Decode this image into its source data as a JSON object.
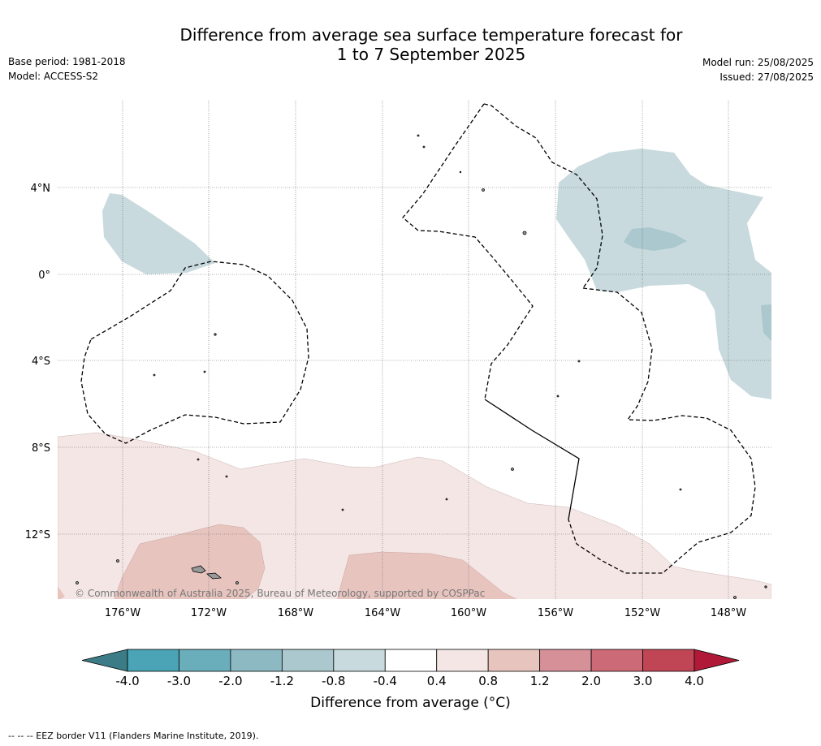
{
  "title_line1": "Difference from average sea surface temperature forecast for",
  "title_line2": "1 to 7 September 2025",
  "base_period": "Base period: 1981-2018",
  "model": "Model: ACCESS-S2",
  "model_run": "Model run: 25/08/2025",
  "issued": "Issued: 27/08/2025",
  "copyright": "© Commonwealth of Australia 2025, Bureau of Meteorology, supported by COSPPac",
  "footnote": "--  --  -- EEZ border V11 (Flanders Marine Institute, 2019).",
  "lon_labels": [
    "176°W",
    "172°W",
    "168°W",
    "164°W",
    "160°W",
    "156°W",
    "152°W",
    "148°W"
  ],
  "lat_labels": [
    "4°N",
    "0°",
    "4°S",
    "8°S",
    "12°S"
  ],
  "colorbar": {
    "title": "Difference from average (°C)",
    "ticks": [
      "-4.0",
      "-3.0",
      "-2.0",
      "-1.2",
      "-0.8",
      "-0.4",
      "0.4",
      "0.8",
      "1.2",
      "2.0",
      "3.0",
      "4.0"
    ],
    "colors": [
      "#3b7c86",
      "#4aa4b5",
      "#6aaebb",
      "#8db9c3",
      "#aac8cd",
      "#c8dadd",
      "#ffffff",
      "#f4e6e4",
      "#e8c4bf",
      "#d69098",
      "#cc6a78",
      "#c04656",
      "#b01a38"
    ]
  },
  "colors": {
    "cool_light": "#c8dadd",
    "cool_mid": "#aac8cd",
    "warm_light": "#f4e6e4",
    "warm_mid": "#e8c4bf"
  }
}
